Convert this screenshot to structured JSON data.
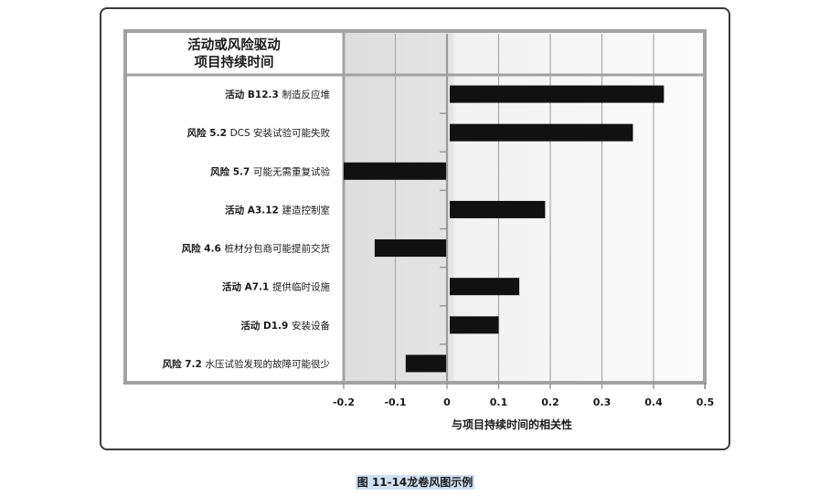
{
  "chart_data": {
    "type": "bar",
    "orientation": "horizontal",
    "header_title_lines": [
      "活动或风险驱动",
      "项目持续时间"
    ],
    "xlabel": "与项目持续时间的相关性",
    "xlim": [
      -0.2,
      0.5
    ],
    "xticks": [
      -0.2,
      -0.1,
      0,
      0.1,
      0.2,
      0.3,
      0.4,
      0.5
    ],
    "xtick_labels": [
      "-0.2",
      "-0.1",
      "0",
      "0.1",
      "0.2",
      "0.3",
      "0.4",
      "0.5"
    ],
    "grid": true,
    "bar_color": "#111111",
    "categories": [
      {
        "prefix": "活动 B12.3",
        "text": "制造反应堆",
        "value": 0.42
      },
      {
        "prefix": "风险 5.2",
        "text": "DCS 安装试验可能失败",
        "value": 0.36
      },
      {
        "prefix": "风险 5.7",
        "text": "可能无需重复试验",
        "value": -0.2
      },
      {
        "prefix": "活动 A3.12",
        "text": "建造控制室",
        "value": 0.19
      },
      {
        "prefix": "风险 4.6",
        "text": "桩材分包商可能提前交货",
        "value": -0.14
      },
      {
        "prefix": "活动 A7.1",
        "text": "提供临时设施",
        "value": 0.14
      },
      {
        "prefix": "活动 D1.9",
        "text": "安装设备",
        "value": 0.1
      },
      {
        "prefix": "风险 7.2",
        "text": "水压试验发现的故障可能很少",
        "value": -0.08
      }
    ]
  },
  "caption": "图 11-14龙卷风图示例"
}
